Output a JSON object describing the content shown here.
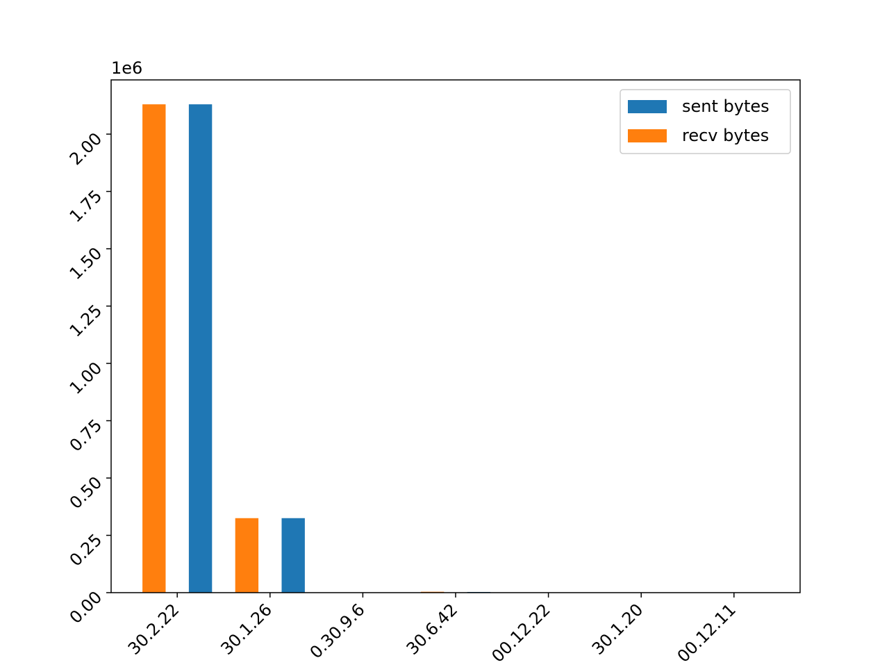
{
  "chart_data": {
    "type": "bar",
    "categories": [
      "30.2.22",
      "30.1.26",
      "0.30.9.6",
      "30.6.42",
      "00.12.22",
      "30.1.20",
      "00.12.11"
    ],
    "series": [
      {
        "name": "sent bytes",
        "color": "#1f77b4",
        "values": [
          2130000,
          325000,
          0,
          3000,
          0,
          0,
          0
        ]
      },
      {
        "name": "recv bytes",
        "color": "#ff7f0e",
        "values": [
          2130000,
          325000,
          0,
          4000,
          0,
          0,
          0
        ]
      }
    ],
    "ylim": [
      0,
      2236500
    ],
    "yticks": [
      {
        "value": 0,
        "label": "0.00"
      },
      {
        "value": 250000,
        "label": "0.25"
      },
      {
        "value": 500000,
        "label": "0.50"
      },
      {
        "value": 750000,
        "label": "0.75"
      },
      {
        "value": 1000000,
        "label": "1.00"
      },
      {
        "value": 1250000,
        "label": "1.25"
      },
      {
        "value": 1500000,
        "label": "1.50"
      },
      {
        "value": 1750000,
        "label": "1.75"
      },
      {
        "value": 2000000,
        "label": "2.00"
      }
    ],
    "y_offset_text": "1e6",
    "legend": "upper right"
  }
}
